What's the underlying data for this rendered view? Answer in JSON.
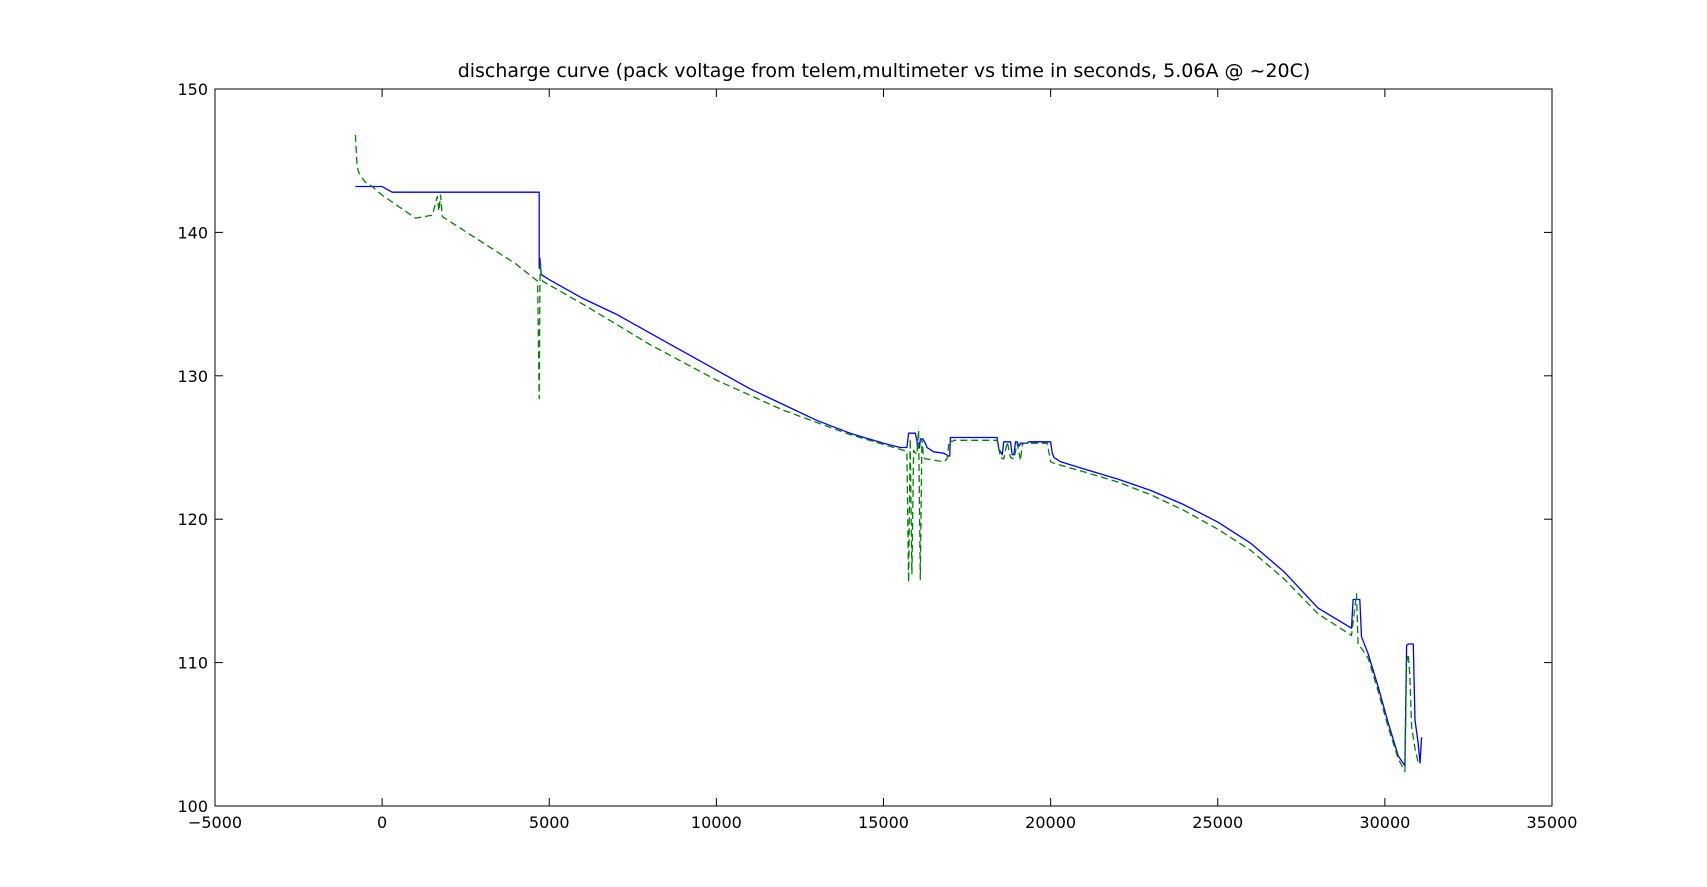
{
  "chart_data": {
    "type": "line",
    "title": "discharge curve (pack voltage from telem,multimeter vs time in seconds, 5.06A @ ~20C)",
    "xlabel": "",
    "ylabel": "",
    "xlim": [
      -5000,
      35000
    ],
    "ylim": [
      100,
      150
    ],
    "xticks": [
      -5000,
      0,
      5000,
      10000,
      15000,
      20000,
      25000,
      30000,
      35000
    ],
    "xtick_labels": [
      "−5000",
      "0",
      "5000",
      "10000",
      "15000",
      "20000",
      "25000",
      "30000",
      "35000"
    ],
    "yticks": [
      100,
      110,
      120,
      130,
      140,
      150
    ],
    "ytick_labels": [
      "100",
      "110",
      "120",
      "130",
      "140",
      "150"
    ],
    "grid": false,
    "legend": "none",
    "series": [
      {
        "color": "#0000ff",
        "style": "solid",
        "x": [
          -800,
          0,
          150,
          300,
          4700,
          4700,
          4720,
          4740,
          4760,
          4800,
          5000,
          6000,
          7000,
          8000,
          9000,
          10000,
          11000,
          12000,
          13000,
          14000,
          15000,
          15500,
          15700,
          15750,
          15950,
          16000,
          16020,
          16080,
          16100,
          16180,
          16250,
          16300,
          16500,
          16800,
          16950,
          16980,
          17000,
          17050,
          18400,
          18450,
          18550,
          18600,
          18650,
          18800,
          18850,
          18900,
          18950,
          19000,
          19050,
          19100,
          19300,
          19350,
          19400,
          19500,
          19700,
          20000,
          20050,
          20100,
          20300,
          21000,
          22000,
          23000,
          24000,
          25000,
          26000,
          27000,
          28000,
          29000,
          29050,
          29250,
          29300,
          29500,
          29800,
          30100,
          30400,
          30600,
          30650,
          30700,
          30850,
          30870,
          30900,
          31000,
          31050,
          31100
        ],
        "y": [
          143.2,
          143.2,
          143.0,
          142.8,
          142.8,
          137.5,
          138.2,
          137.5,
          137.1,
          137.0,
          136.7,
          135.4,
          134.3,
          133.0,
          131.7,
          130.4,
          129.1,
          128.0,
          126.9,
          126.0,
          125.3,
          125.0,
          125.0,
          126.0,
          126.0,
          125.5,
          125.0,
          125.0,
          125.6,
          125.6,
          125.3,
          125.0,
          124.7,
          124.6,
          124.4,
          124.4,
          125.7,
          125.7,
          125.7,
          124.9,
          124.5,
          125.4,
          125.4,
          125.4,
          124.5,
          124.5,
          125.4,
          125.4,
          125.1,
          125.3,
          125.3,
          125.4,
          125.4,
          125.4,
          125.4,
          125.4,
          124.6,
          124.3,
          124.0,
          123.5,
          122.8,
          122.0,
          121.0,
          119.8,
          118.3,
          116.3,
          113.8,
          112.4,
          114.4,
          114.4,
          111.8,
          110.6,
          108.3,
          105.8,
          103.5,
          102.8,
          111.2,
          111.3,
          111.3,
          109.0,
          106.0,
          104.3,
          103.0,
          104.8
        ]
      },
      {
        "color": "#008000",
        "style": "dashed",
        "x": [
          -800,
          -750,
          -700,
          -600,
          -500,
          -300,
          0,
          500,
          1000,
          1500,
          1650,
          1700,
          1750,
          1800,
          2000,
          3000,
          4000,
          4650,
          4700,
          4720,
          4740,
          4760,
          4800,
          6000,
          8000,
          10000,
          12000,
          14000,
          15600,
          15700,
          15750,
          15800,
          15850,
          15900,
          16000,
          16050,
          16100,
          16150,
          16200,
          16250,
          16300,
          16800,
          16900,
          16950,
          17000,
          17050,
          17100,
          17200,
          17600,
          18400,
          18500,
          18600,
          18700,
          18800,
          18900,
          19000,
          19100,
          19150,
          19200,
          19300,
          19500,
          19900,
          20000,
          20100,
          21000,
          22000,
          23000,
          24000,
          25000,
          26000,
          27000,
          28000,
          29000,
          29150,
          29200,
          29250,
          29300,
          29500,
          29800,
          30100,
          30400,
          30600,
          30650,
          30700,
          30750,
          30800,
          30900,
          31000,
          31050
        ],
        "y": [
          146.8,
          144.6,
          144.2,
          143.8,
          143.5,
          143.2,
          142.6,
          141.8,
          141.0,
          141.2,
          142.5,
          141.5,
          142.6,
          141.1,
          140.8,
          139.3,
          137.8,
          136.6,
          128.4,
          136.5,
          137.8,
          137.0,
          136.6,
          135.0,
          132.2,
          129.7,
          127.6,
          125.9,
          124.8,
          124.7,
          115.6,
          125.6,
          116.2,
          124.8,
          124.5,
          126.2,
          115.8,
          125.6,
          124.3,
          124.2,
          124.2,
          124.0,
          124.2,
          125.2,
          125.5,
          125.4,
          125.5,
          125.5,
          125.5,
          125.5,
          124.3,
          124.2,
          125.4,
          124.3,
          124.2,
          125.3,
          124.1,
          125.2,
          125.3,
          125.3,
          125.3,
          125.3,
          124.0,
          123.9,
          123.3,
          122.6,
          121.7,
          120.6,
          119.3,
          117.8,
          115.8,
          113.4,
          111.9,
          114.8,
          111.2,
          111.1,
          111.0,
          110.3,
          108.0,
          105.5,
          103.3,
          102.4,
          110.0,
          110.6,
          109.0,
          105.5,
          104.0,
          103.0,
          103.0
        ]
      }
    ]
  }
}
